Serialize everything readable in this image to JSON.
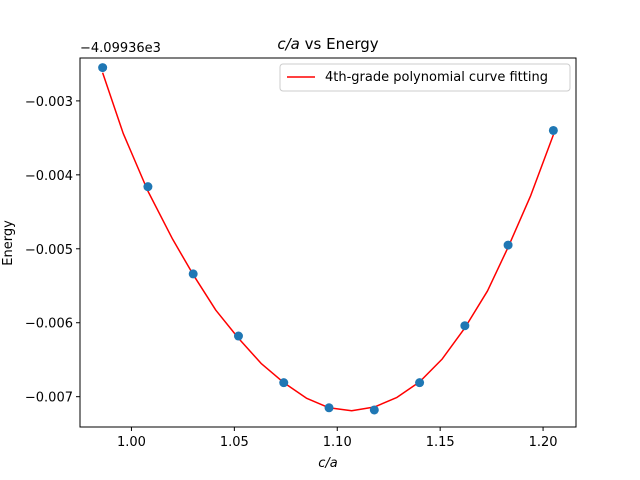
{
  "chart_data": {
    "type": "scatter",
    "title": "c/a vs Energy",
    "title_italic_part": "c/a",
    "title_rest": " vs Energy",
    "xlabel": "c/a",
    "ylabel": "Energy",
    "y_offset_text": "−4.09936e3",
    "xlim": [
      0.975,
      1.216
    ],
    "ylim": [
      -0.00741,
      -0.00242
    ],
    "xticks": [
      1.0,
      1.05,
      1.1,
      1.15,
      1.2
    ],
    "xtick_labels": [
      "1.00",
      "1.05",
      "1.10",
      "1.15",
      "1.20"
    ],
    "yticks": [
      -0.003,
      -0.004,
      -0.005,
      -0.006,
      -0.007
    ],
    "ytick_labels": [
      "−0.003",
      "−0.004",
      "−0.005",
      "−0.006",
      "−0.007"
    ],
    "grid": false,
    "legend_position": "top-right",
    "series": [
      {
        "kind": "points",
        "color": "#1f77b4",
        "x": [
          0.986,
          1.008,
          1.03,
          1.052,
          1.074,
          1.096,
          1.118,
          1.14,
          1.162,
          1.183,
          1.205
        ],
        "y": [
          -0.00255,
          -0.00416,
          -0.00534,
          -0.00618,
          -0.00681,
          -0.00715,
          -0.00718,
          -0.00681,
          -0.00604,
          -0.00495,
          -0.0034
        ]
      },
      {
        "kind": "curve",
        "name": "4th-grade polynomial curve fitting",
        "color": "#ff0000",
        "x": [
          0.986,
          0.996,
          1.008,
          1.02,
          1.03,
          1.041,
          1.052,
          1.063,
          1.074,
          1.085,
          1.096,
          1.107,
          1.118,
          1.129,
          1.14,
          1.151,
          1.162,
          1.173,
          1.183,
          1.194,
          1.205
        ],
        "y": [
          -0.00262,
          -0.00344,
          -0.00422,
          -0.00487,
          -0.00535,
          -0.00583,
          -0.00621,
          -0.00655,
          -0.00681,
          -0.00702,
          -0.00715,
          -0.00719,
          -0.00714,
          -0.00701,
          -0.0068,
          -0.00649,
          -0.00607,
          -0.00557,
          -0.00498,
          -0.00428,
          -0.00346
        ]
      }
    ]
  }
}
